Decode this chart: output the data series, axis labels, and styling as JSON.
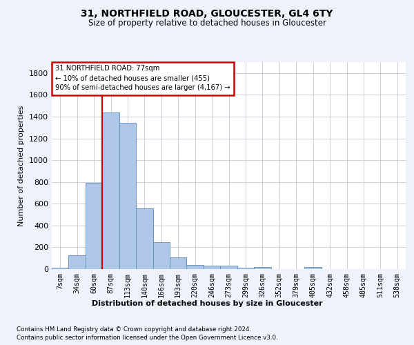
{
  "title1": "31, NORTHFIELD ROAD, GLOUCESTER, GL4 6TY",
  "title2": "Size of property relative to detached houses in Gloucester",
  "xlabel": "Distribution of detached houses by size in Gloucester",
  "ylabel": "Number of detached properties",
  "footer1": "Contains HM Land Registry data © Crown copyright and database right 2024.",
  "footer2": "Contains public sector information licensed under the Open Government Licence v3.0.",
  "bar_labels": [
    "7sqm",
    "34sqm",
    "60sqm",
    "87sqm",
    "113sqm",
    "140sqm",
    "166sqm",
    "193sqm",
    "220sqm",
    "246sqm",
    "273sqm",
    "299sqm",
    "326sqm",
    "352sqm",
    "379sqm",
    "405sqm",
    "432sqm",
    "458sqm",
    "485sqm",
    "511sqm",
    "538sqm"
  ],
  "bar_values": [
    15,
    125,
    790,
    1440,
    1345,
    555,
    250,
    110,
    35,
    30,
    30,
    15,
    20,
    0,
    0,
    20,
    0,
    0,
    0,
    0,
    0
  ],
  "bar_color": "#aec6e8",
  "bar_edge_color": "#5b8db8",
  "vline_color": "#cc0000",
  "annotation_box_color": "#cc0000",
  "highlight_label": "31 NORTHFIELD ROAD: 77sqm",
  "annotation_line1": "← 10% of detached houses are smaller (455)",
  "annotation_line2": "90% of semi-detached houses are larger (4,167) →",
  "ylim": [
    0,
    1900
  ],
  "yticks": [
    0,
    200,
    400,
    600,
    800,
    1000,
    1200,
    1400,
    1600,
    1800
  ],
  "bg_color": "#eef2fb",
  "plot_bg_color": "#ffffff",
  "grid_color": "#bbbbcc"
}
